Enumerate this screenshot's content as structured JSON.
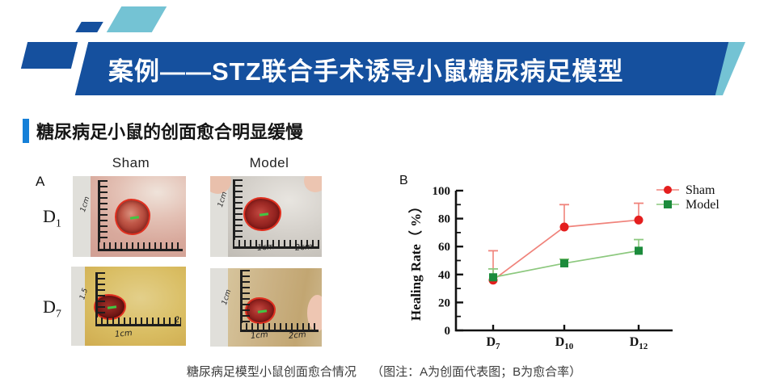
{
  "header": {
    "title": "案例——STZ联合手术诱导小鼠糖尿病足模型"
  },
  "subtitle": "糖尿病足小鼠的创面愈合明显缓慢",
  "panel_a": {
    "label": "A",
    "columns": [
      "Sham",
      "Model"
    ],
    "rows": [
      {
        "base": "D",
        "sub": "1"
      },
      {
        "base": "D",
        "sub": "7"
      }
    ],
    "photos": [
      {
        "id": "sham-d1",
        "vruler": "1cm",
        "h1": "",
        "h2": ""
      },
      {
        "id": "model-d1",
        "vruler": "1cm",
        "h1": "1cm",
        "h2": "2cm"
      },
      {
        "id": "sham-d7",
        "vruler": "1.5",
        "h1": "1cm",
        "h2": "2"
      },
      {
        "id": "model-d7",
        "vruler": "1cm",
        "h1": "1cm",
        "h2": "2cm"
      }
    ]
  },
  "chart_data": {
    "type": "line",
    "panel_label": "B",
    "ylabel": "Healing Rate（ %）",
    "ylim": [
      0,
      100
    ],
    "yticks": [
      0,
      20,
      40,
      60,
      80,
      100
    ],
    "minor_yticks": [
      10,
      30,
      50,
      70,
      90
    ],
    "categories": [
      "D7",
      "D10",
      "D12"
    ],
    "categories_display": [
      {
        "base": "D",
        "sub": "7"
      },
      {
        "base": "D",
        "sub": "10"
      },
      {
        "base": "D",
        "sub": "12"
      }
    ],
    "grid": false,
    "legend_position": "top-right",
    "series": [
      {
        "name": "Sham",
        "marker": "circle",
        "marker_color": "#e41e1e",
        "line_color": "#f0837b",
        "values": [
          36,
          74,
          79
        ],
        "error_plus": [
          21,
          16,
          12
        ]
      },
      {
        "name": "Model",
        "marker": "square",
        "marker_color": "#1c8b3c",
        "line_color": "#8cc87e",
        "values": [
          38,
          48,
          57
        ],
        "error_plus": [
          6,
          3,
          8
        ]
      }
    ]
  },
  "caption": {
    "main": "糖尿病足模型小鼠创面愈合情况",
    "note": "（图注：A为创面代表图；B为愈合率）"
  },
  "colors": {
    "banner_blue": "#15509e",
    "accent_teal": "#74c3d4",
    "subtitle_bar_blue": "#1580d8",
    "sham_red": "#e41e1e",
    "model_green": "#1c8b3c"
  }
}
